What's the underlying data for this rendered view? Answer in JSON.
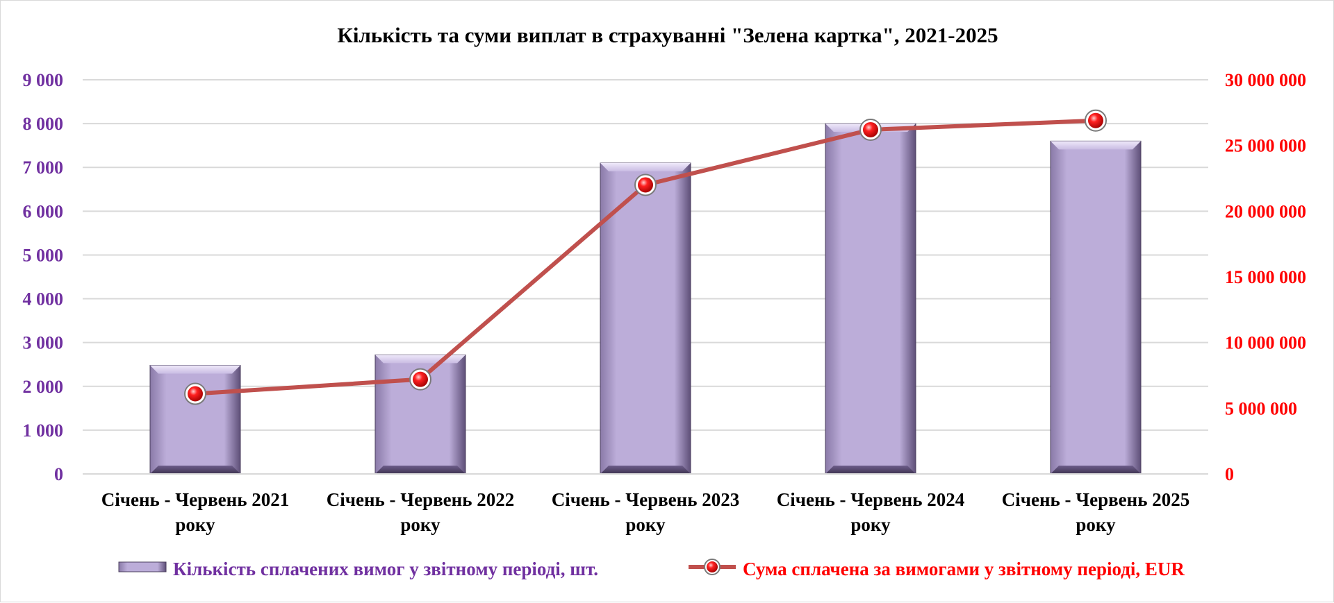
{
  "chart_data": {
    "type": "bar",
    "title": "Кількість та суми виплат в страхуванні \"Зелена картка\", 2021-2025",
    "categories": [
      [
        "Січень - Червень 2021",
        "року"
      ],
      [
        "Січень - Червень 2022",
        "року"
      ],
      [
        "Січень - Червень 2023",
        "року"
      ],
      [
        "Січень - Червень 2024",
        "року"
      ],
      [
        "Січень - Червень 2025",
        "року"
      ]
    ],
    "series": [
      {
        "name": "Кількість сплачених вимог у звітному періоді, шт.",
        "type": "bar",
        "axis": "left",
        "values": [
          2480,
          2720,
          7100,
          8000,
          7600
        ]
      },
      {
        "name": "Сума сплачена за вимогами у звітному періоді, EUR",
        "type": "line",
        "axis": "right",
        "values": [
          6100000,
          7200000,
          22000000,
          26200000,
          26900000
        ]
      }
    ],
    "y_left": {
      "ylim": [
        0,
        9000
      ],
      "ticks": [
        0,
        1000,
        2000,
        3000,
        4000,
        5000,
        6000,
        7000,
        8000,
        9000
      ],
      "tick_labels": [
        "0",
        "1 000",
        "2 000",
        "3 000",
        "4 000",
        "5 000",
        "6 000",
        "7 000",
        "8 000",
        "9 000"
      ]
    },
    "y_right": {
      "ylim": [
        0,
        30000000
      ],
      "ticks": [
        0,
        5000000,
        10000000,
        15000000,
        20000000,
        25000000,
        30000000
      ],
      "tick_labels": [
        "0",
        "5 000 000",
        "10 000 000",
        "15 000 000",
        "20 000 000",
        "25 000 000",
        "30 000 000"
      ]
    },
    "grid": true,
    "legend": "bottom",
    "colors": {
      "bar": "#b9a9d6",
      "bar_dark": "#6a5a86",
      "line": "#c0504d",
      "marker": "#ff0000",
      "left_axis": "#7030a0",
      "right_axis": "#ff0000"
    }
  }
}
